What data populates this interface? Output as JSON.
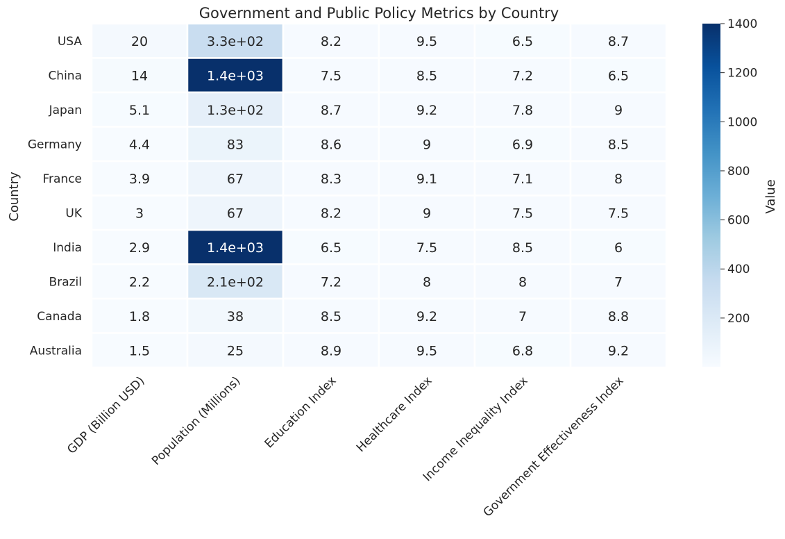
{
  "chart_data": {
    "type": "heatmap",
    "title": "Government and Public Policy Metrics by Country",
    "xlabel": "",
    "ylabel": "Country",
    "colorbar_label": "Value",
    "colormap": "Blues",
    "vmin": 1.5,
    "vmax": 1400,
    "colorbar_ticks": [
      200,
      400,
      600,
      800,
      1000,
      1200,
      1400
    ],
    "columns": [
      "GDP (Billion USD)",
      "Population (Millions)",
      "Education Index",
      "Healthcare Index",
      "Income Inequality Index",
      "Government Effectiveness Index"
    ],
    "rows": [
      "USA",
      "China",
      "Japan",
      "Germany",
      "France",
      "UK",
      "India",
      "Brazil",
      "Canada",
      "Australia"
    ],
    "values": [
      [
        20,
        330,
        8.2,
        9.5,
        6.5,
        8.7
      ],
      [
        14,
        1400,
        7.5,
        8.5,
        7.2,
        6.5
      ],
      [
        5.1,
        130,
        8.7,
        9.2,
        7.8,
        9
      ],
      [
        4.4,
        83,
        8.6,
        9,
        6.9,
        8.5
      ],
      [
        3.9,
        67,
        8.3,
        9.1,
        7.1,
        8
      ],
      [
        3,
        67,
        8.2,
        9,
        7.5,
        7.5
      ],
      [
        2.9,
        1400,
        6.5,
        7.5,
        8.5,
        6
      ],
      [
        2.2,
        210,
        7.2,
        8,
        8,
        7
      ],
      [
        1.8,
        38,
        8.5,
        9.2,
        7,
        8.8
      ],
      [
        1.5,
        25,
        8.9,
        9.5,
        6.8,
        9.2
      ]
    ],
    "annotations": [
      [
        "20",
        "3.3e+02",
        "8.2",
        "9.5",
        "6.5",
        "8.7"
      ],
      [
        "14",
        "1.4e+03",
        "7.5",
        "8.5",
        "7.2",
        "6.5"
      ],
      [
        "5.1",
        "1.3e+02",
        "8.7",
        "9.2",
        "7.8",
        "9"
      ],
      [
        "4.4",
        "83",
        "8.6",
        "9",
        "6.9",
        "8.5"
      ],
      [
        "3.9",
        "67",
        "8.3",
        "9.1",
        "7.1",
        "8"
      ],
      [
        "3",
        "67",
        "8.2",
        "9",
        "7.5",
        "7.5"
      ],
      [
        "2.9",
        "1.4e+03",
        "6.5",
        "7.5",
        "8.5",
        "6"
      ],
      [
        "2.2",
        "2.1e+02",
        "7.2",
        "8",
        "8",
        "7"
      ],
      [
        "1.8",
        "38",
        "8.5",
        "9.2",
        "7",
        "8.8"
      ],
      [
        "1.5",
        "25",
        "8.9",
        "9.5",
        "6.8",
        "9.2"
      ]
    ]
  }
}
